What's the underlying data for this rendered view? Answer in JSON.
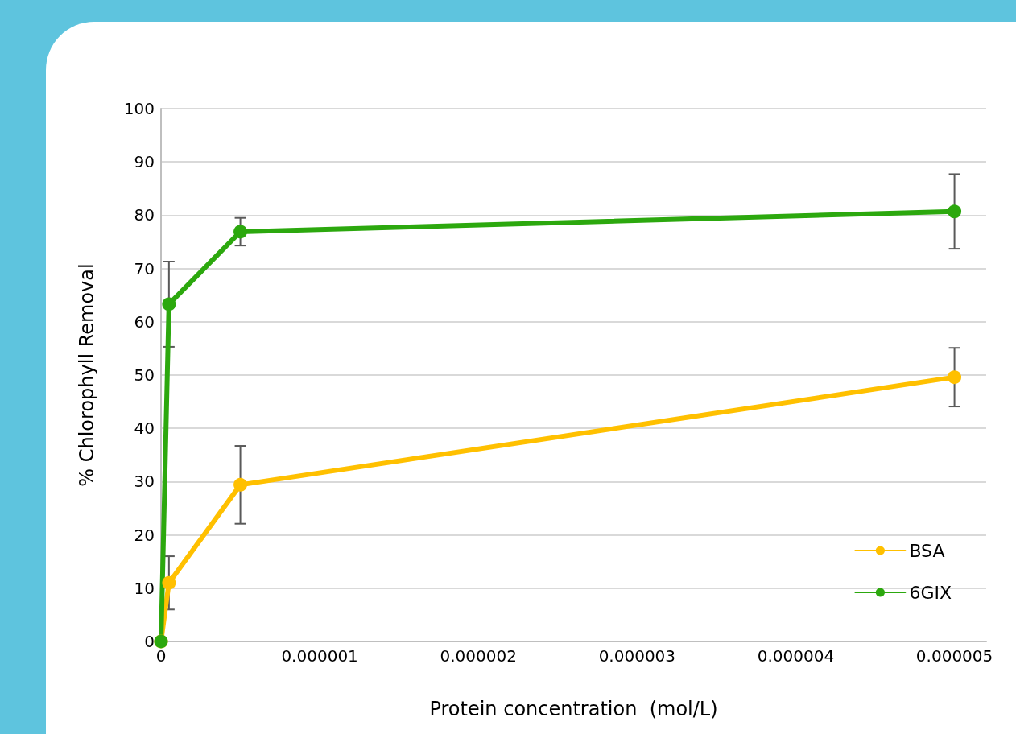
{
  "chart_data": {
    "type": "line",
    "xlabel": "Protein concentration  (mol/L)",
    "ylabel": "% Chlorophyll Removal",
    "x": [
      0,
      5e-08,
      5e-07,
      5e-06
    ],
    "series": [
      {
        "name": "BSA",
        "color": "#ffc000",
        "values": [
          0,
          11,
          29.4,
          49.6
        ],
        "errors": [
          null,
          5,
          7.3,
          5.5
        ]
      },
      {
        "name": "6GIX",
        "color": "#2ca80e",
        "values": [
          0,
          63.3,
          76.9,
          80.7
        ],
        "errors": [
          null,
          8,
          2.6,
          7
        ]
      }
    ],
    "xlim": [
      0,
      5.2e-06
    ],
    "xticks": [
      0,
      {
        "value": 1e-06,
        "label": "0.000001"
      },
      {
        "value": 2e-06,
        "label": "0.000002"
      },
      {
        "value": 3e-06,
        "label": "0.000003"
      },
      {
        "value": 4e-06,
        "label": "0.000004"
      },
      {
        "value": 5e-06,
        "label": "0.000005"
      }
    ],
    "ylim": [
      0,
      100
    ],
    "yticks": [
      0,
      10,
      20,
      30,
      40,
      50,
      60,
      70,
      80,
      90,
      100
    ],
    "grid": "y",
    "legend": "bottom right",
    "marker": "circle",
    "line_style": "solid"
  }
}
